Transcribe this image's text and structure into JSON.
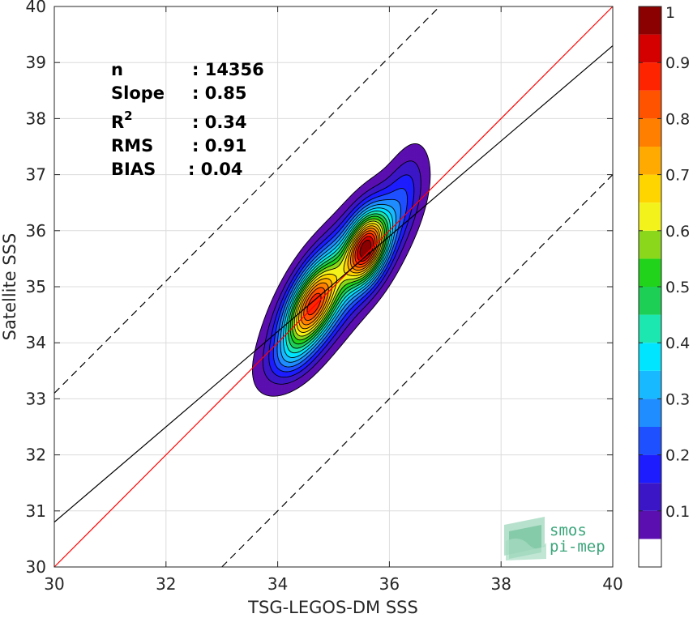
{
  "chart_data": {
    "type": "contour-density-scatter",
    "xlabel": "TSG-LEGOS-DM SSS",
    "ylabel": "Satellite SSS",
    "xlim": [
      30,
      40
    ],
    "ylim": [
      30,
      40
    ],
    "xticks": [
      "30",
      "32",
      "34",
      "36",
      "38",
      "40"
    ],
    "yticks": [
      "30",
      "31",
      "32",
      "33",
      "34",
      "35",
      "36",
      "37",
      "38",
      "39",
      "40"
    ],
    "grid": true,
    "stats": [
      {
        "label": "n",
        "value": ": 14356"
      },
      {
        "label": "Slope",
        "value": ": 0.85"
      },
      {
        "label": "R",
        "sup": "2",
        "value": ": 0.34"
      },
      {
        "label": "RMS",
        "value": ": 0.91"
      },
      {
        "label": "BIAS",
        "value": ": 0.04"
      }
    ],
    "lines": [
      {
        "kind": "identity",
        "color": "#ff0000",
        "style": "solid",
        "slope": 1,
        "intercept": 0
      },
      {
        "kind": "regression",
        "color": "#000000",
        "style": "solid",
        "slope": 0.85,
        "intercept": 5.3
      },
      {
        "kind": "upper-bound",
        "color": "#000000",
        "style": "dashed",
        "slope": 1,
        "intercept": 3.1
      },
      {
        "kind": "lower-bound",
        "color": "#000000",
        "style": "dashed",
        "slope": 1,
        "intercept": -3.0
      }
    ],
    "density": {
      "components": [
        {
          "cx": 34.6,
          "cy": 34.65,
          "sx": 0.33,
          "sy": 0.55,
          "rho": 0.55,
          "w": 0.85
        },
        {
          "cx": 35.6,
          "cy": 35.7,
          "sx": 0.25,
          "sy": 0.42,
          "rho": 0.35,
          "w": 1.0
        },
        {
          "cx": 35.1,
          "cy": 35.15,
          "sx": 0.75,
          "sy": 1.0,
          "rho": 0.8,
          "w": 0.55
        },
        {
          "cx": 36.25,
          "cy": 36.6,
          "sx": 0.25,
          "sy": 0.6,
          "rho": 0.5,
          "w": 0.15
        },
        {
          "cx": 34.2,
          "cy": 33.7,
          "sx": 0.25,
          "sy": 0.25,
          "rho": 0.3,
          "w": 0.1
        }
      ],
      "levels": [
        0.05,
        0.1,
        0.15,
        0.2,
        0.25,
        0.3,
        0.35,
        0.4,
        0.45,
        0.5,
        0.55,
        0.6,
        0.65,
        0.7,
        0.75,
        0.8,
        0.85,
        0.9,
        0.95
      ]
    },
    "colorbar": {
      "range": [
        0,
        1
      ],
      "ticks": [
        "0.1",
        "0.2",
        "0.3",
        "0.4",
        "0.5",
        "0.6",
        "0.7",
        "0.8",
        "0.9",
        "1"
      ],
      "colors": [
        "#ffffff",
        "#5b0fb0",
        "#3b16c7",
        "#1c1cff",
        "#1f50ff",
        "#1f8cff",
        "#18b9ff",
        "#00e5ff",
        "#1de7b0",
        "#1ecf56",
        "#21d31b",
        "#8ad71b",
        "#f3f31b",
        "#ffd500",
        "#ffaa00",
        "#ff7f00",
        "#ff5300",
        "#ff2400",
        "#d40000",
        "#8b0000"
      ]
    }
  },
  "logo": {
    "line1": "smos",
    "line2": "pi-mep"
  }
}
